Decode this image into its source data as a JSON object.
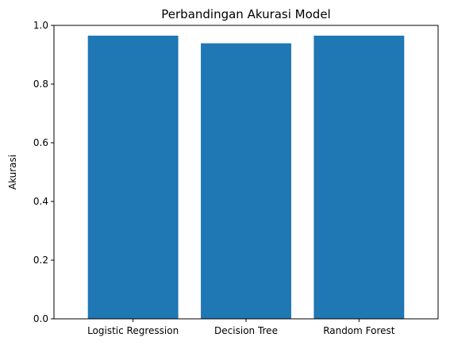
{
  "chart_data": {
    "type": "bar",
    "title": "Perbandingan Akurasi Model",
    "xlabel": "",
    "ylabel": "Akurasi",
    "categories": [
      "Logistic Regression",
      "Decision Tree",
      "Random Forest"
    ],
    "values": [
      0.965,
      0.939,
      0.965
    ],
    "ylim": [
      0,
      1.0
    ],
    "yticks": [
      "0.0",
      "0.2",
      "0.4",
      "0.6",
      "0.8",
      "1.0"
    ],
    "bar_color": "#1f77b4",
    "grid": false,
    "legend": "none"
  }
}
